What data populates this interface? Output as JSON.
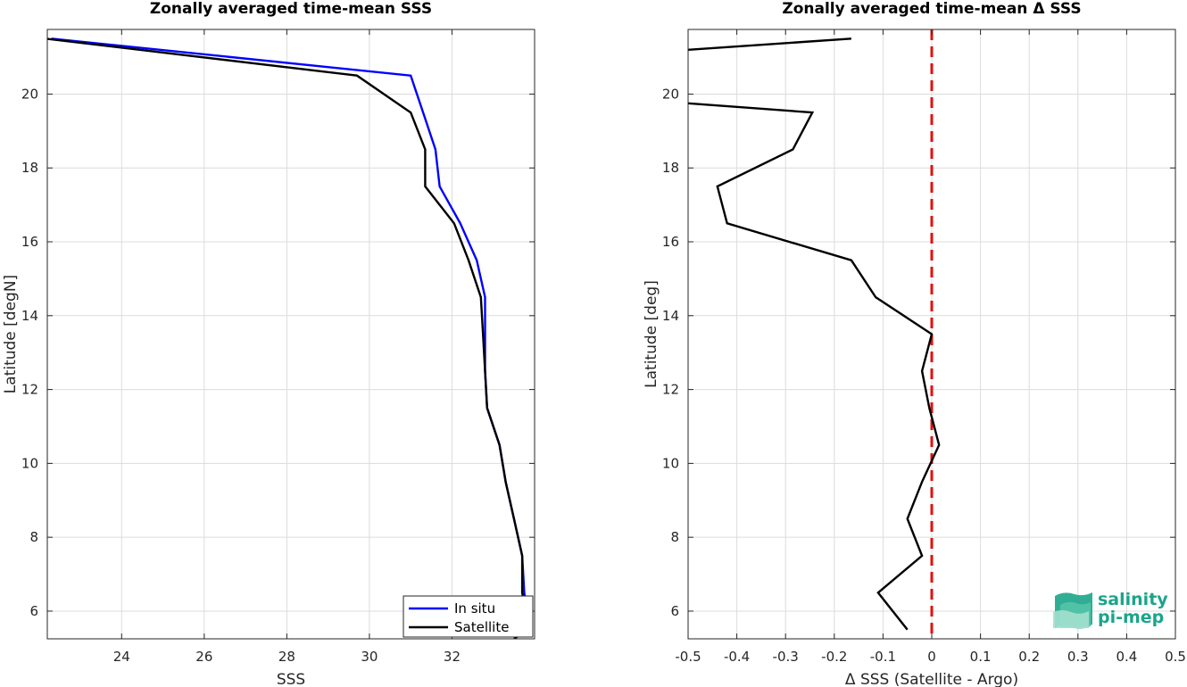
{
  "chart_data": [
    {
      "type": "line",
      "title": "Zonally averaged time-mean SSS",
      "xlabel": "SSS",
      "ylabel": "Latitude [degN]",
      "xlim": [
        22.2,
        34.0
      ],
      "ylim": [
        5.25,
        21.75
      ],
      "xticks": [
        24,
        26,
        28,
        30,
        32
      ],
      "yticks": [
        6,
        8,
        10,
        12,
        14,
        16,
        18,
        20
      ],
      "grid": true,
      "legend_position": "bottom-right",
      "series": [
        {
          "name": "In situ",
          "color": "#0000ff",
          "points": [
            [
              33.9,
              5.5
            ],
            [
              33.75,
              6.5
            ],
            [
              33.7,
              7.5
            ],
            [
              33.5,
              8.5
            ],
            [
              33.3,
              9.5
            ],
            [
              33.15,
              10.5
            ],
            [
              32.85,
              11.5
            ],
            [
              32.8,
              12.5
            ],
            [
              32.8,
              13.5
            ],
            [
              32.8,
              14.5
            ],
            [
              32.6,
              15.5
            ],
            [
              32.2,
              16.5
            ],
            [
              31.7,
              17.5
            ],
            [
              31.6,
              18.5
            ],
            [
              31.3,
              19.5
            ],
            [
              31.0,
              20.5
            ],
            [
              22.3,
              21.5
            ]
          ]
        },
        {
          "name": "Satellite",
          "color": "#000000",
          "points": [
            [
              33.5,
              5.25
            ],
            [
              33.85,
              5.5
            ],
            [
              33.7,
              6.5
            ],
            [
              33.7,
              7.5
            ],
            [
              33.5,
              8.5
            ],
            [
              33.3,
              9.5
            ],
            [
              33.15,
              10.5
            ],
            [
              32.85,
              11.5
            ],
            [
              32.8,
              12.5
            ],
            [
              32.75,
              13.5
            ],
            [
              32.7,
              14.5
            ],
            [
              32.4,
              15.5
            ],
            [
              32.05,
              16.5
            ],
            [
              31.35,
              17.5
            ],
            [
              31.35,
              18.5
            ],
            [
              31.0,
              19.5
            ],
            [
              29.7,
              20.5
            ],
            [
              22.15,
              21.5
            ]
          ]
        }
      ]
    },
    {
      "type": "line",
      "title": "Zonally averaged time-mean Δ SSS",
      "xlabel": "Δ SSS (Satellite - Argo)",
      "ylabel": "Latitude [deg]",
      "xlim": [
        -0.5,
        0.5
      ],
      "ylim": [
        5.25,
        21.75
      ],
      "xticks": [
        -0.5,
        -0.4,
        -0.3,
        -0.2,
        -0.1,
        0,
        0.1,
        0.2,
        0.3,
        0.4,
        0.5
      ],
      "xtick_labels": [
        "-0.5",
        "-0.4",
        "-0.3",
        "-0.2",
        "-0.1",
        "0",
        "0.1",
        "0.2",
        "0.3",
        "0.4",
        "0.5"
      ],
      "yticks": [
        6,
        8,
        10,
        12,
        14,
        16,
        18,
        20
      ],
      "grid": true,
      "reference_line": {
        "x": 0,
        "color": "#e01010",
        "style": "dashed"
      },
      "series": [
        {
          "color": "#000000",
          "points": [
            [
              -0.05,
              5.5
            ],
            [
              -0.11,
              6.5
            ],
            [
              -0.02,
              7.5
            ],
            [
              -0.05,
              8.5
            ],
            [
              -0.02,
              9.5
            ],
            [
              0.015,
              10.5
            ],
            [
              -0.005,
              11.5
            ],
            [
              -0.02,
              12.5
            ],
            [
              0.0,
              13.5
            ],
            [
              -0.115,
              14.5
            ],
            [
              -0.165,
              15.5
            ],
            [
              -0.42,
              16.5
            ],
            [
              -0.44,
              17.5
            ],
            [
              -0.285,
              18.5
            ],
            [
              -0.245,
              19.5
            ],
            [
              -0.5,
              19.75
            ]
          ]
        },
        {
          "color": "#000000",
          "points": [
            [
              -0.5,
              21.2
            ],
            [
              -0.165,
              21.5
            ]
          ]
        }
      ]
    }
  ],
  "logo": {
    "line1": "salinity",
    "line2": "pi-mep",
    "color": "#1aa58a"
  }
}
